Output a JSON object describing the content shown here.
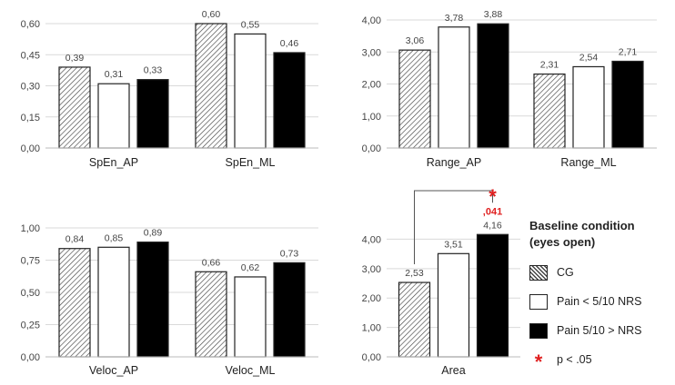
{
  "legend": {
    "title_line1": "Baseline condition",
    "title_line2": "(eyes open)",
    "items": [
      {
        "label": "CG",
        "style": "hatch"
      },
      {
        "label": "Pain < 5/10 NRS",
        "style": "white"
      },
      {
        "label": "Pain 5/10 > NRS",
        "style": "black"
      }
    ],
    "sig_symbol": "*",
    "sig_label": "p < .05"
  },
  "chart_data": [
    {
      "type": "bar",
      "categories": [
        "SpEn_AP",
        "SpEn_ML"
      ],
      "series": [
        {
          "name": "CG",
          "values": [
            0.39,
            0.6
          ]
        },
        {
          "name": "Pain < 5/10 NRS",
          "values": [
            0.31,
            0.55
          ]
        },
        {
          "name": "Pain 5/10 > NRS",
          "values": [
            0.33,
            0.46
          ]
        }
      ],
      "value_labels": [
        [
          "0,39",
          "0,60"
        ],
        [
          "0,31",
          "0,55"
        ],
        [
          "0,33",
          "0,46"
        ]
      ],
      "ylim": [
        0,
        0.6
      ],
      "yticks": [
        0,
        0.15,
        0.3,
        0.45,
        0.6
      ],
      "ytick_labels": [
        "0,00",
        "0,15",
        "0,30",
        "0,45",
        "0,60"
      ],
      "grid": true
    },
    {
      "type": "bar",
      "categories": [
        "Range_AP",
        "Range_ML"
      ],
      "series": [
        {
          "name": "CG",
          "values": [
            3.06,
            2.31
          ]
        },
        {
          "name": "Pain < 5/10 NRS",
          "values": [
            3.78,
            2.54
          ]
        },
        {
          "name": "Pain 5/10 > NRS",
          "values": [
            3.88,
            2.71
          ]
        }
      ],
      "value_labels": [
        [
          "3,06",
          "2,31"
        ],
        [
          "3,78",
          "2,54"
        ],
        [
          "3,88",
          "2,71"
        ]
      ],
      "ylim": [
        0,
        4
      ],
      "yticks": [
        0,
        1,
        2,
        3,
        4
      ],
      "ytick_labels": [
        "0,00",
        "1,00",
        "2,00",
        "3,00",
        "4,00"
      ],
      "grid": true
    },
    {
      "type": "bar",
      "categories": [
        "Veloc_AP",
        "Veloc_ML"
      ],
      "series": [
        {
          "name": "CG",
          "values": [
            0.84,
            0.66
          ]
        },
        {
          "name": "Pain < 5/10 NRS",
          "values": [
            0.85,
            0.62
          ]
        },
        {
          "name": "Pain 5/10 > NRS",
          "values": [
            0.89,
            0.73
          ]
        }
      ],
      "value_labels": [
        [
          "0,84",
          "0,66"
        ],
        [
          "0,85",
          "0,62"
        ],
        [
          "0,89",
          "0,73"
        ]
      ],
      "ylim": [
        0,
        1
      ],
      "yticks": [
        0,
        0.25,
        0.5,
        0.75,
        1
      ],
      "ytick_labels": [
        "0,00",
        "0,25",
        "0,50",
        "0,75",
        "1,00"
      ],
      "grid": true
    },
    {
      "type": "bar",
      "categories": [
        "Area"
      ],
      "series": [
        {
          "name": "CG",
          "values": [
            2.53
          ]
        },
        {
          "name": "Pain < 5/10 NRS",
          "values": [
            3.51
          ]
        },
        {
          "name": "Pain 5/10 > NRS",
          "values": [
            4.16
          ]
        }
      ],
      "value_labels": [
        [
          "2,53"
        ],
        [
          "3,51"
        ],
        [
          "4,16"
        ]
      ],
      "ylim": [
        0,
        4.6
      ],
      "yticks": [
        0,
        1,
        2,
        3,
        4
      ],
      "ytick_labels": [
        "0,00",
        "1,00",
        "2,00",
        "3,00",
        "4,00"
      ],
      "grid": true,
      "significance": {
        "p_value": ",041",
        "symbol": "*",
        "between": [
          "CG",
          "Pain 5/10 > NRS"
        ]
      }
    }
  ]
}
